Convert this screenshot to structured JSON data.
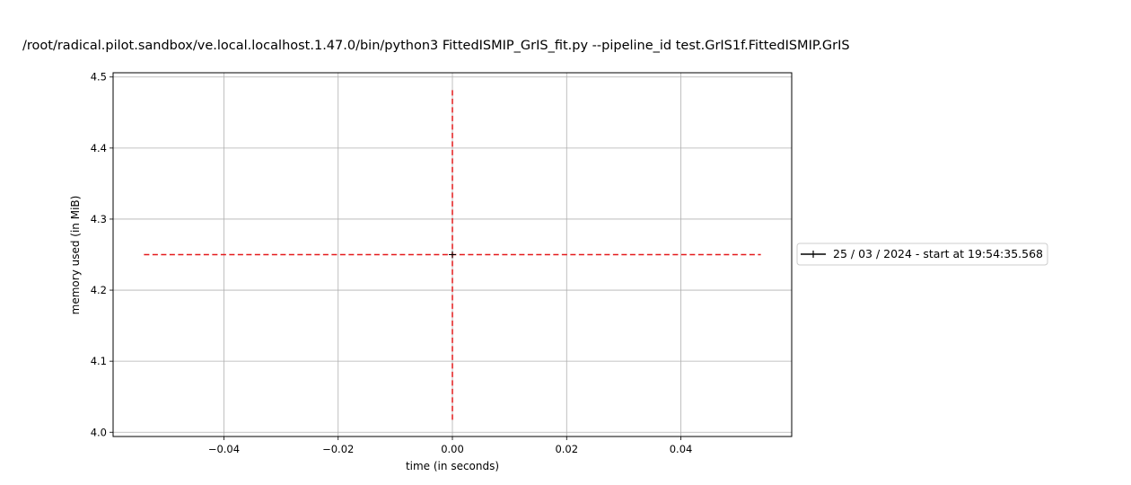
{
  "chart_data": {
    "type": "line",
    "title": "/root/radical.pilot.sandbox/ve.local.localhost.1.47.0/bin/python3 FittedISMIP_GrIS_fit.py --pipeline_id test.GrIS1f.FittedISMIP.GrIS",
    "xlabel": "time (in seconds)",
    "ylabel": "memory used (in MiB)",
    "xlim": [
      -0.0594,
      0.0594
    ],
    "ylim": [
      3.994,
      4.506
    ],
    "xticks": [
      -0.04,
      -0.02,
      0.0,
      0.02,
      0.04
    ],
    "xtick_labels": [
      "−0.04",
      "−0.02",
      "0.00",
      "0.02",
      "0.04"
    ],
    "yticks": [
      4.0,
      4.1,
      4.2,
      4.3,
      4.4,
      4.5
    ],
    "ytick_labels": [
      "4.0",
      "4.1",
      "4.2",
      "4.3",
      "4.4",
      "4.5"
    ],
    "grid": true,
    "legend_position": "right",
    "series": [
      {
        "name": "25 / 03 / 2024 - start at 19:54:35.568",
        "color": "#000000",
        "marker": "plus",
        "x": [
          0.0
        ],
        "y": [
          4.25
        ]
      }
    ],
    "reference_lines": [
      {
        "orientation": "horizontal",
        "y": 4.25,
        "x_range": [
          -0.054,
          0.054
        ],
        "color": "#e41a1c",
        "style": "dashed"
      },
      {
        "orientation": "vertical",
        "x": 0.0,
        "y_range": [
          4.0175,
          4.4825
        ],
        "color": "#e41a1c",
        "style": "dashed"
      }
    ]
  }
}
